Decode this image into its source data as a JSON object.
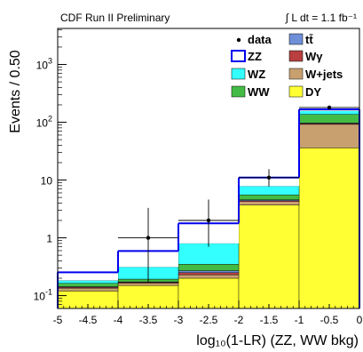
{
  "chart_data": {
    "type": "stacked_histogram",
    "header_left": "CDF Run II Preliminary",
    "header_right": "∫ L dt = 1.1 fb⁻¹",
    "xlabel": "log₁₀(1-LR) (ZZ, WW bkg)",
    "ylabel": "Events / 0.50",
    "xlim": [
      -5,
      0
    ],
    "ylim": [
      0.06,
      4200
    ],
    "yscale": "log",
    "x_ticks": [
      "-5",
      "-4.5",
      "-4",
      "-3.5",
      "-3",
      "-2.5",
      "-2",
      "-1.5",
      "-1",
      "-0.5",
      "0"
    ],
    "y_ticks": [
      {
        "value": 0.1,
        "base": "10",
        "exp": "-1"
      },
      {
        "value": 1,
        "base": "1",
        "exp": ""
      },
      {
        "value": 10,
        "base": "10",
        "exp": ""
      },
      {
        "value": 100,
        "base": "10",
        "exp": "2"
      },
      {
        "value": 1000,
        "base": "10",
        "exp": "3"
      }
    ],
    "bin_edges": [
      -5,
      -4,
      -3,
      -2,
      -1,
      0
    ],
    "stack": [
      {
        "name": "DY",
        "color": "#ffff33",
        "values": [
          0.12,
          0.15,
          0.2,
          3.7,
          36.0
        ]
      },
      {
        "name": "W+jets",
        "color": "#c8a070",
        "values": [
          0.015,
          0.015,
          0.03,
          0.55,
          56.0
        ]
      },
      {
        "name": "Wγ",
        "color": "#b84040",
        "values": [
          0.005,
          0.005,
          0.02,
          0.15,
          3.0
        ]
      },
      {
        "name": "tt̄",
        "color": "#6f8fd9",
        "values": [
          0.003,
          0.003,
          0.02,
          0.15,
          2.0
        ]
      },
      {
        "name": "WW",
        "color": "#44bb44",
        "values": [
          0.02,
          0.02,
          0.08,
          1.0,
          40.0
        ]
      },
      {
        "name": "WZ",
        "color": "#33ffff",
        "values": [
          0.02,
          0.12,
          0.45,
          2.3,
          20.0
        ]
      },
      {
        "name": "ZZ",
        "color": "#0000ee",
        "outline": true,
        "values": [
          0.07,
          0.28,
          0.98,
          3.2,
          10.0
        ]
      }
    ],
    "data": {
      "name": "data",
      "x": [
        -3.5,
        -2.5,
        -1.5,
        -0.5
      ],
      "y": [
        1,
        2,
        11,
        180
      ],
      "yerr_low": [
        0.83,
        1.3,
        3.3,
        13
      ],
      "yerr_high": [
        2.3,
        2.6,
        4.4,
        14
      ]
    },
    "legend": [
      {
        "label": "data",
        "key": "data",
        "style": "dot"
      },
      {
        "label": "tt̄",
        "key": "tt̄",
        "style": "box"
      },
      {
        "label": "ZZ",
        "key": "ZZ",
        "style": "outline"
      },
      {
        "label": "Wγ",
        "key": "Wγ",
        "style": "box"
      },
      {
        "label": "WZ",
        "key": "WZ",
        "style": "box"
      },
      {
        "label": "W+jets",
        "key": "W+jets",
        "style": "box"
      },
      {
        "label": "WW",
        "key": "WW",
        "style": "box"
      },
      {
        "label": "DY",
        "key": "DY",
        "style": "box"
      }
    ]
  }
}
